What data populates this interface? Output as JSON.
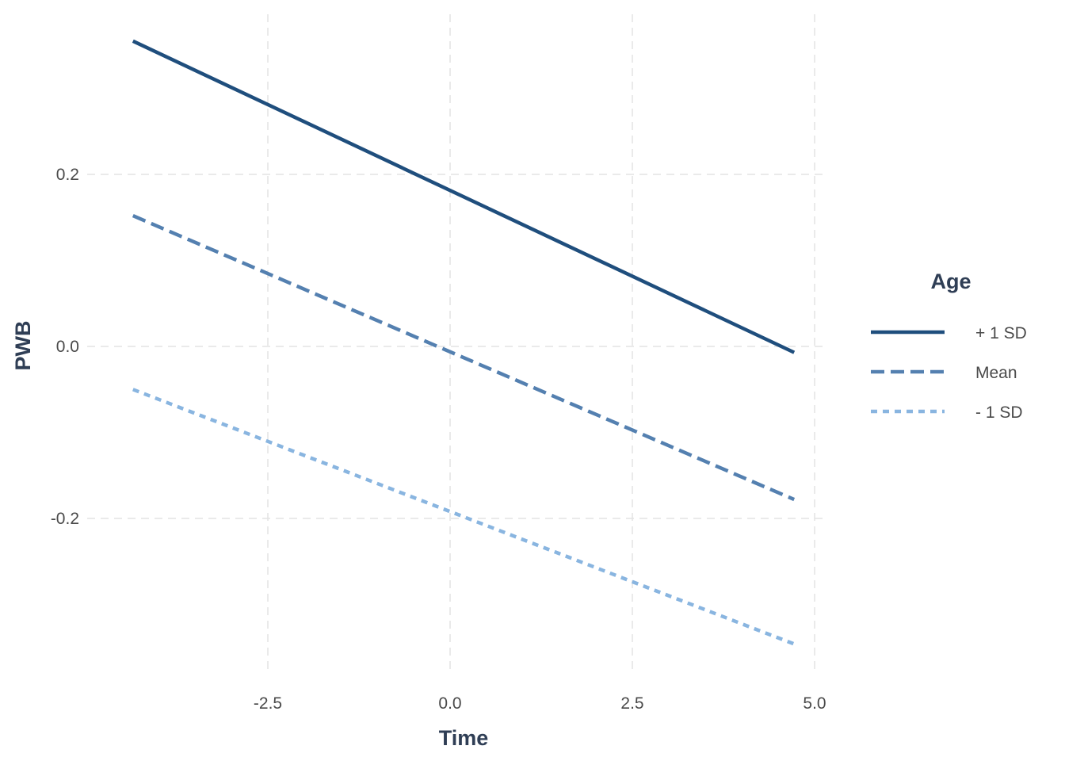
{
  "chart_data": {
    "type": "line",
    "title": "",
    "xlabel": "Time",
    "ylabel": "PWB",
    "xlim": [
      -4.3,
      5.05
    ],
    "ylim": [
      -0.375,
      0.39
    ],
    "x_ticks": [
      {
        "value": -2.5,
        "label": "-2.5"
      },
      {
        "value": 0.0,
        "label": "0.0"
      },
      {
        "value": 2.5,
        "label": "2.5"
      },
      {
        "value": 5.0,
        "label": "5.0"
      }
    ],
    "y_ticks": [
      {
        "value": -0.2,
        "label": "-0.2"
      },
      {
        "value": 0.0,
        "label": "0.0"
      },
      {
        "value": 0.2,
        "label": "0.2"
      }
    ],
    "grid": true,
    "grid_style": "dashed",
    "legend": {
      "title": "Age",
      "position": "right"
    },
    "series": [
      {
        "name": "+ 1 SD",
        "color": "#1f4e7d",
        "style": "solid",
        "x": [
          -4.35,
          4.72
        ],
        "y": [
          0.355,
          -0.007
        ]
      },
      {
        "name": "Mean",
        "color": "#5480b0",
        "style": "dashed",
        "x": [
          -4.35,
          4.72
        ],
        "y": [
          0.152,
          -0.178
        ]
      },
      {
        "name": "- 1 SD",
        "color": "#89b5e0",
        "style": "dotted",
        "x": [
          -4.35,
          4.72
        ],
        "y": [
          -0.05,
          -0.346
        ]
      }
    ]
  }
}
